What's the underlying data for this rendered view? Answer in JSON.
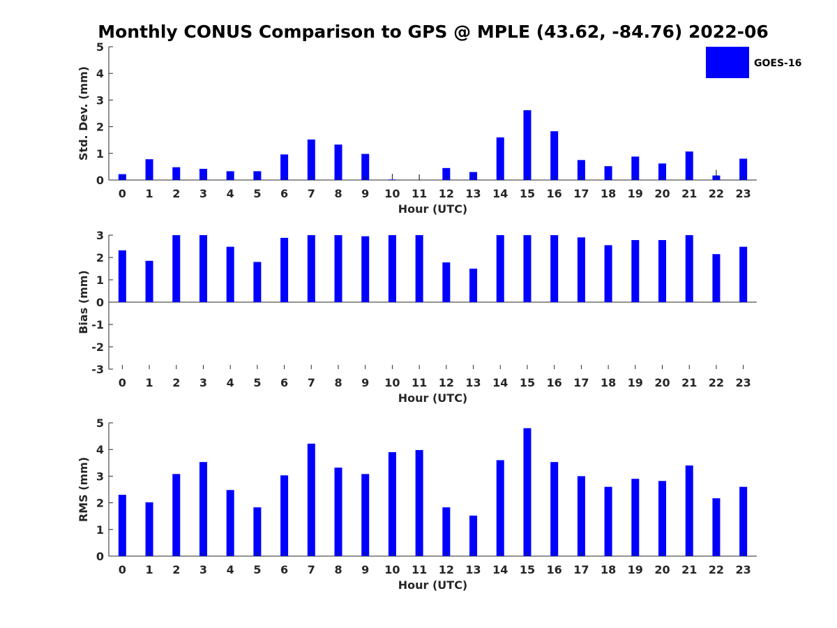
{
  "figure": {
    "title": "Monthly CONUS Comparison to GPS @ MPLE (43.62, -84.76) 2022-06"
  },
  "legend": {
    "label": "GOES-16",
    "color": "#0000ff"
  },
  "chart_data": [
    {
      "type": "bar",
      "categories": [
        "0",
        "1",
        "2",
        "3",
        "4",
        "5",
        "6",
        "7",
        "8",
        "9",
        "10",
        "11",
        "12",
        "13",
        "14",
        "15",
        "16",
        "17",
        "18",
        "19",
        "20",
        "21",
        "22",
        "23"
      ],
      "series": [
        {
          "name": "GOES-16",
          "values": [
            0.22,
            0.78,
            0.48,
            0.42,
            0.33,
            0.33,
            0.96,
            1.52,
            1.33,
            0.98,
            0.02,
            0,
            0.45,
            0.3,
            1.6,
            2.62,
            1.83,
            0.75,
            0.52,
            0.88,
            0.62,
            1.07,
            0.17,
            0.8
          ]
        }
      ],
      "error_bar_hours": [
        10,
        11,
        22
      ],
      "xlabel": "Hour (UTC)",
      "ylabel": "Std. Dev. (mm)",
      "ylim": [
        0,
        5
      ],
      "yticks": [
        0,
        1,
        2,
        3,
        4,
        5
      ],
      "legend": "top-right",
      "grid": false
    },
    {
      "type": "bar",
      "categories": [
        "0",
        "1",
        "2",
        "3",
        "4",
        "5",
        "6",
        "7",
        "8",
        "9",
        "10",
        "11",
        "12",
        "13",
        "14",
        "15",
        "16",
        "17",
        "18",
        "19",
        "20",
        "21",
        "22",
        "23"
      ],
      "series": [
        {
          "name": "GOES-16",
          "values": [
            2.32,
            1.85,
            3.0,
            3.0,
            2.48,
            1.8,
            2.88,
            3.0,
            3.0,
            2.95,
            3.0,
            3.0,
            1.78,
            1.5,
            3.0,
            3.0,
            3.0,
            2.9,
            2.55,
            2.78,
            2.78,
            3.0,
            2.15,
            2.48
          ]
        }
      ],
      "xlabel": "Hour (UTC)",
      "ylabel": "Bias (mm)",
      "ylim": [
        -3,
        3
      ],
      "yticks": [
        -3,
        -2,
        -1,
        0,
        1,
        2,
        3
      ],
      "grid": false
    },
    {
      "type": "bar",
      "categories": [
        "0",
        "1",
        "2",
        "3",
        "4",
        "5",
        "6",
        "7",
        "8",
        "9",
        "10",
        "11",
        "12",
        "13",
        "14",
        "15",
        "16",
        "17",
        "18",
        "19",
        "20",
        "21",
        "22",
        "23"
      ],
      "series": [
        {
          "name": "GOES-16",
          "values": [
            2.3,
            2.02,
            3.08,
            3.53,
            2.48,
            1.83,
            3.03,
            4.22,
            3.32,
            3.08,
            3.9,
            3.98,
            1.83,
            1.52,
            3.6,
            4.8,
            3.53,
            3.0,
            2.6,
            2.9,
            2.82,
            3.4,
            2.17,
            2.6
          ]
        }
      ],
      "xlabel": "Hour (UTC)",
      "ylabel": "RMS (mm)",
      "ylim": [
        0,
        5
      ],
      "yticks": [
        0,
        1,
        2,
        3,
        4,
        5
      ],
      "grid": false
    }
  ]
}
